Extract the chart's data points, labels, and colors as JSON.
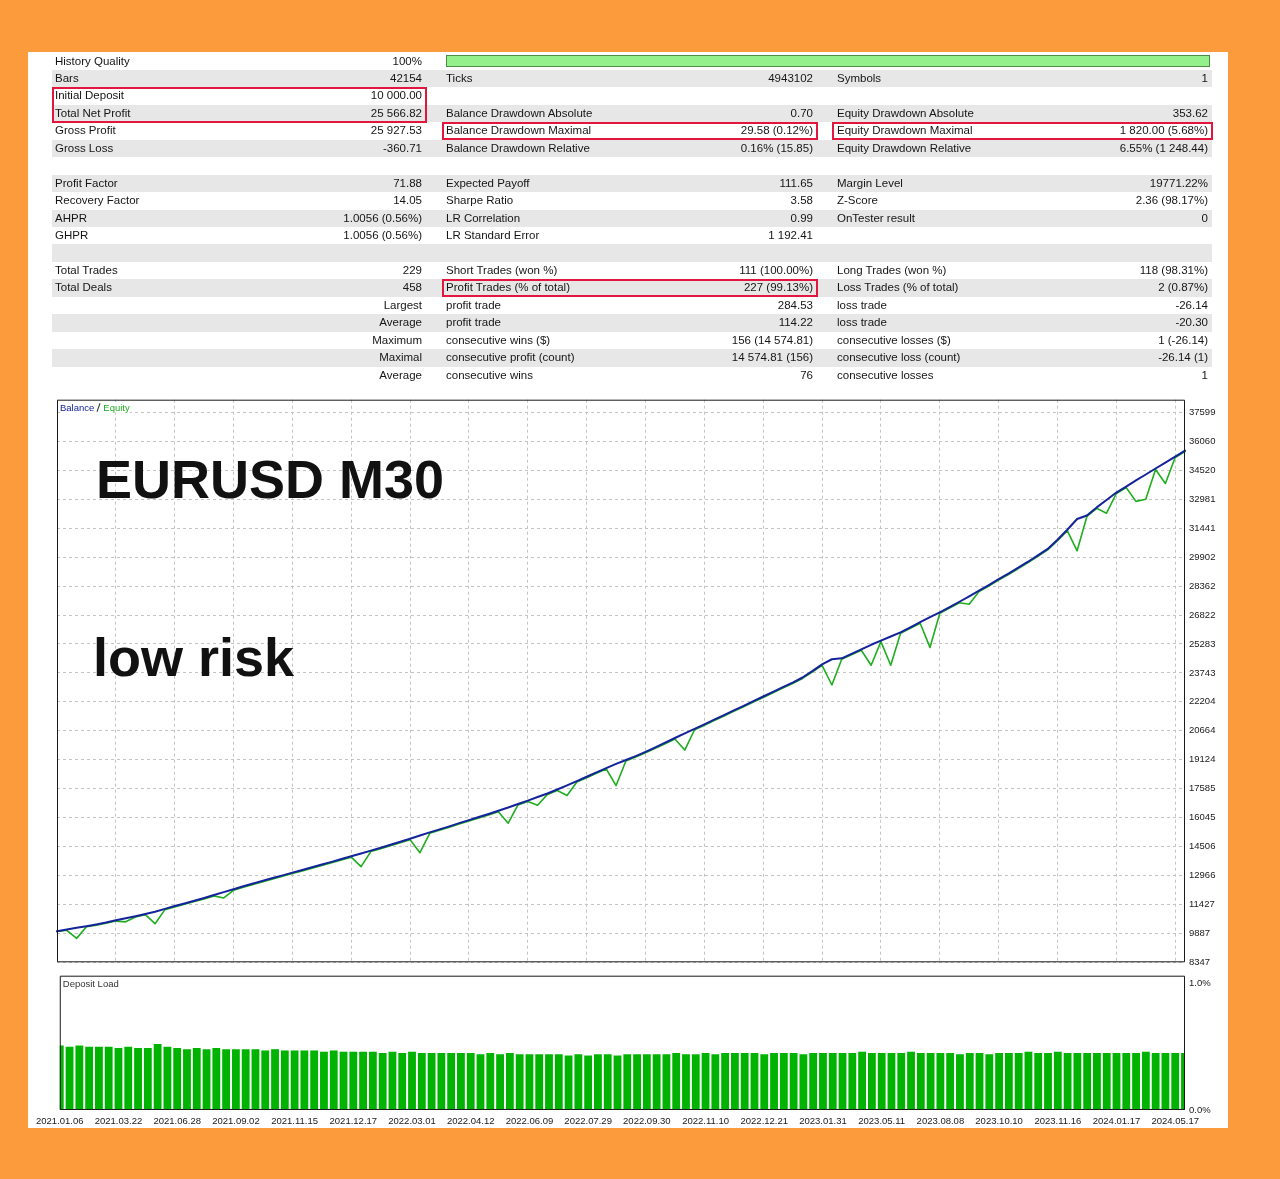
{
  "chart_data": [
    {
      "type": "other",
      "cell_labels": [
        [
          "History Quality",
          "100%",
          null,
          null,
          null,
          null
        ],
        [
          "Bars",
          "42154",
          "Ticks",
          "4943102",
          "Symbols",
          "1"
        ],
        [
          "Initial Deposit",
          "10 000.00",
          null,
          null,
          null,
          null
        ],
        [
          "Total Net Profit",
          "25 566.82",
          "Balance Drawdown Absolute",
          "0.70",
          "Equity Drawdown Absolute",
          "353.62"
        ],
        [
          "Gross Profit",
          "25 927.53",
          "Balance Drawdown Maximal",
          "29.58 (0.12%)",
          "Equity Drawdown Maximal",
          "1 820.00 (5.68%)"
        ],
        [
          "Gross Loss",
          "-360.71",
          "Balance Drawdown Relative",
          "0.16% (15.85)",
          "Equity Drawdown Relative",
          "6.55% (1 248.44)"
        ],
        [
          null,
          null,
          null,
          null,
          null,
          null
        ],
        [
          "Profit Factor",
          "71.88",
          "Expected Payoff",
          "111.65",
          "Margin Level",
          "19771.22%"
        ],
        [
          "Recovery Factor",
          "14.05",
          "Sharpe Ratio",
          "3.58",
          "Z-Score",
          "2.36 (98.17%)"
        ],
        [
          "AHPR",
          "1.0056 (0.56%)",
          "LR Correlation",
          "0.99",
          "OnTester result",
          "0"
        ],
        [
          "GHPR",
          "1.0056 (0.56%)",
          "LR Standard Error",
          "1 192.41",
          null,
          null
        ],
        [
          null,
          null,
          null,
          null,
          null,
          null
        ],
        [
          "Total Trades",
          "229",
          "Short Trades (won %)",
          "111 (100.00%)",
          "Long Trades (won %)",
          "118 (98.31%)"
        ],
        [
          "Total Deals",
          "458",
          "Profit Trades (% of total)",
          "227 (99.13%)",
          "Loss Trades (% of total)",
          "2 (0.87%)"
        ],
        [
          null,
          "Largest",
          "profit trade",
          "284.53",
          "loss trade",
          "-26.14"
        ],
        [
          null,
          "Average",
          "profit trade",
          "114.22",
          "loss trade",
          "-20.30"
        ],
        [
          null,
          "Maximum",
          "consecutive wins ($)",
          "156 (14 574.81)",
          "consecutive losses ($)",
          "1 (-26.14)"
        ],
        [
          null,
          "Maximal",
          "consecutive profit (count)",
          "14 574.81 (156)",
          "consecutive loss (count)",
          "-26.14 (1)"
        ],
        [
          null,
          "Average",
          "consecutive wins",
          "76",
          "consecutive losses",
          "1"
        ]
      ]
    },
    {
      "type": "line",
      "annotations": [
        "EURUSD M30",
        "low risk"
      ],
      "categories": [
        "2021.01.06",
        null,
        null,
        null,
        null,
        null,
        "2021.03.22",
        null,
        null,
        null,
        null,
        null,
        "2021.06.28",
        null,
        null,
        null,
        null,
        null,
        "2021.09.02",
        null,
        null,
        null,
        null,
        null,
        "2021.11.15",
        null,
        null,
        null,
        null,
        null,
        "2021.12.17",
        null,
        null,
        null,
        null,
        null,
        "2022.03.01",
        null,
        null,
        null,
        null,
        null,
        "2022.04.12",
        null,
        null,
        null,
        null,
        null,
        "2022.06.09",
        null,
        null,
        null,
        null,
        null,
        "2022.07.29",
        null,
        null,
        null,
        null,
        null,
        "2022.09.30",
        null,
        null,
        null,
        null,
        null,
        "2022.11.10",
        null,
        null,
        null,
        null,
        null,
        "2022.12.21",
        null,
        null,
        null,
        null,
        null,
        "2023.01.31",
        null,
        null,
        null,
        null,
        null,
        "2023.05.11",
        null,
        null,
        null,
        null,
        null,
        "2023.08.08",
        null,
        null,
        null,
        null,
        null,
        "2023.10.10",
        null,
        null,
        null,
        null,
        null,
        "2023.11.16",
        null,
        null,
        null,
        null,
        null,
        "2024.01.17",
        null,
        null,
        null,
        null,
        null,
        "2024.05.17",
        null
      ],
      "series": [
        {
          "name": "Balance",
          "color": "#14239a",
          "values": [
            10000,
            10090,
            10180,
            10270,
            10360,
            10460,
            10580,
            10690,
            10800,
            10920,
            11040,
            11190,
            11340,
            11480,
            11620,
            11770,
            11930,
            12080,
            12230,
            12390,
            12540,
            12690,
            12830,
            12970,
            13120,
            13260,
            13400,
            13550,
            13690,
            13840,
            13990,
            14140,
            14290,
            14440,
            14600,
            14760,
            14920,
            15090,
            15260,
            15420,
            15580,
            15750,
            15910,
            16080,
            16240,
            16410,
            16580,
            16770,
            16950,
            17140,
            17330,
            17540,
            17760,
            17990,
            18220,
            18450,
            18680,
            18900,
            19110,
            19320,
            19540,
            19780,
            20030,
            20280,
            20530,
            20770,
            21010,
            21260,
            21500,
            21750,
            21990,
            22240,
            22490,
            22740,
            22990,
            23230,
            23500,
            23840,
            24200,
            24470,
            24520,
            24760,
            25000,
            25240,
            25460,
            25680,
            25900,
            26170,
            26440,
            26710,
            26970,
            27240,
            27530,
            27820,
            28120,
            28420,
            28730,
            29030,
            29340,
            29660,
            30000,
            30340,
            30830,
            31360,
            31930,
            32120,
            32550,
            32940,
            33340,
            33660,
            33990,
            34300,
            34620,
            34930,
            35250,
            35570
          ]
        },
        {
          "name": "Equity",
          "color": "#1fae1f",
          "values": [
            9990,
            10050,
            9620,
            10240,
            10320,
            10420,
            10540,
            10500,
            10760,
            10880,
            10400,
            11150,
            11290,
            11440,
            11580,
            11720,
            11880,
            11770,
            12180,
            12340,
            12490,
            12640,
            12780,
            12920,
            13070,
            13210,
            13350,
            13500,
            13640,
            13790,
            13940,
            13440,
            14240,
            14390,
            14550,
            14710,
            14870,
            14180,
            15210,
            15370,
            15530,
            15700,
            15860,
            16030,
            16190,
            16360,
            15750,
            16720,
            16900,
            16700,
            17280,
            17490,
            17220,
            17940,
            18170,
            18400,
            18630,
            17750,
            19060,
            19270,
            19490,
            19730,
            19980,
            20230,
            19640,
            20720,
            20960,
            21210,
            21450,
            21700,
            21940,
            22190,
            22440,
            22690,
            22940,
            23180,
            23450,
            23790,
            24150,
            23100,
            24470,
            24710,
            24950,
            24150,
            25410,
            24150,
            25850,
            26120,
            26390,
            25100,
            26920,
            27190,
            27480,
            27400,
            28070,
            28370,
            28680,
            28980,
            29290,
            29610,
            29950,
            30290,
            30780,
            31310,
            30240,
            32070,
            32500,
            32240,
            33290,
            33610,
            32870,
            32980,
            34570,
            33820,
            35200,
            35520
          ]
        }
      ],
      "ylim": [
        8347,
        38280
      ],
      "yticks": [
        8347,
        9887,
        11427,
        12966,
        14506,
        16045,
        17585,
        19124,
        20664,
        22204,
        23743,
        25283,
        26822,
        28362,
        29902,
        31441,
        32981,
        34520,
        36060,
        37599
      ],
      "grid": true,
      "legend": "top left",
      "tick_labels": "y",
      "marker": "none"
    },
    {
      "type": "bar",
      "title": "Deposit Load",
      "categories": [
        "2021.01.06",
        null,
        null,
        null,
        null,
        null,
        "2021.03.22",
        null,
        null,
        null,
        null,
        null,
        "2021.06.28",
        null,
        null,
        null,
        null,
        null,
        "2021.09.02",
        null,
        null,
        null,
        null,
        null,
        "2021.11.15",
        null,
        null,
        null,
        null,
        null,
        "2021.12.17",
        null,
        null,
        null,
        null,
        null,
        "2022.03.01",
        null,
        null,
        null,
        null,
        null,
        "2022.04.12",
        null,
        null,
        null,
        null,
        null,
        "2022.06.09",
        null,
        null,
        null,
        null,
        null,
        "2022.07.29",
        null,
        null,
        null,
        null,
        null,
        "2022.09.30",
        null,
        null,
        null,
        null,
        null,
        "2022.11.10",
        null,
        null,
        null,
        null,
        null,
        "2022.12.21",
        null,
        null,
        null,
        null,
        null,
        "2023.01.31",
        null,
        null,
        null,
        null,
        null,
        "2023.05.11",
        null,
        null,
        null,
        null,
        null,
        "2023.08.08",
        null,
        null,
        null,
        null,
        null,
        "2023.10.10",
        null,
        null,
        null,
        null,
        null,
        "2023.11.16",
        null,
        null,
        null,
        null,
        null,
        "2024.01.17",
        null,
        null,
        null,
        null,
        null,
        "2024.05.17",
        null
      ],
      "color": "#00b300",
      "values": [
        0.51,
        0.5,
        0.51,
        0.5,
        0.5,
        0.5,
        0.49,
        0.5,
        0.49,
        0.49,
        0.52,
        0.5,
        0.49,
        0.48,
        0.49,
        0.48,
        0.49,
        0.48,
        0.48,
        0.48,
        0.48,
        0.47,
        0.48,
        0.47,
        0.47,
        0.47,
        0.47,
        0.46,
        0.47,
        0.46,
        0.46,
        0.46,
        0.46,
        0.45,
        0.46,
        0.45,
        0.46,
        0.45,
        0.45,
        0.45,
        0.45,
        0.45,
        0.45,
        0.44,
        0.45,
        0.44,
        0.45,
        0.44,
        0.44,
        0.44,
        0.44,
        0.44,
        0.43,
        0.44,
        0.43,
        0.44,
        0.44,
        0.43,
        0.44,
        0.44,
        0.44,
        0.44,
        0.44,
        0.45,
        0.44,
        0.44,
        0.45,
        0.44,
        0.45,
        0.45,
        0.45,
        0.45,
        0.44,
        0.45,
        0.45,
        0.45,
        0.44,
        0.45,
        0.45,
        0.45,
        0.45,
        0.45,
        0.46,
        0.45,
        0.45,
        0.45,
        0.45,
        0.46,
        0.45,
        0.45,
        0.45,
        0.45,
        0.44,
        0.45,
        0.45,
        0.44,
        0.45,
        0.45,
        0.45,
        0.46,
        0.45,
        0.45,
        0.46,
        0.45,
        0.45,
        0.45,
        0.45,
        0.45,
        0.45,
        0.45,
        0.45,
        0.46,
        0.45,
        0.45,
        0.45,
        0.45
      ],
      "ylim": [
        0,
        1.06
      ],
      "yticks": [
        {
          "value": 1,
          "label": "1.0%"
        },
        {
          "value": 0,
          "label": "0.0%"
        }
      ]
    }
  ]
}
